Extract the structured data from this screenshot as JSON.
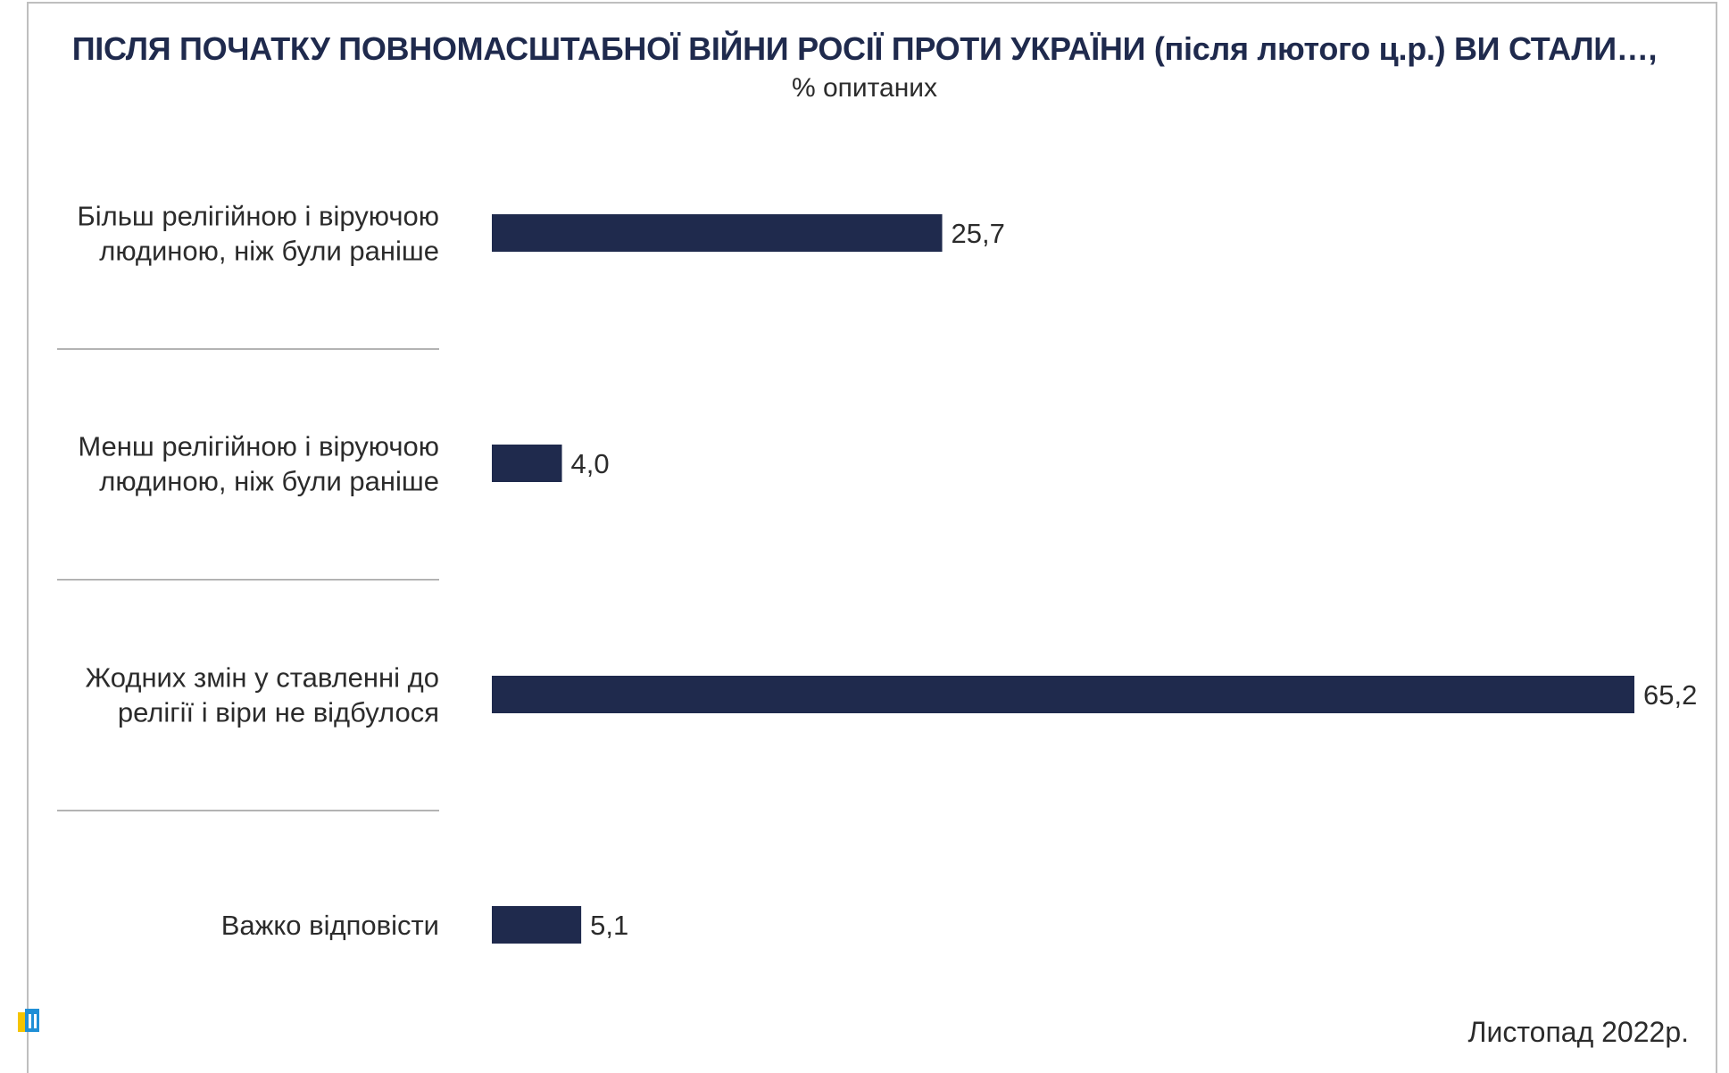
{
  "title": "ПІСЛЯ ПОЧАТКУ ПОВНОМАСШТАБНОЇ ВІЙНИ РОСІЇ ПРОТИ УКРАЇНИ (після лютого ц.р.) ВИ СТАЛИ…,",
  "subtitle": "% опитаних",
  "footer": "Листопад 2022р.",
  "colors": {
    "bar": "#1f2a4d",
    "separator": "#9a9a9a",
    "text": "#2b2b2b",
    "logo_blue": "#1f8fd6",
    "logo_yellow": "#f5c400"
  },
  "chart_data": {
    "type": "bar",
    "orientation": "horizontal",
    "categories": [
      [
        "Більш релігійною і віруючою",
        "людиною, ніж були раніше"
      ],
      [
        "Менш релігійною і віруючою",
        "людиною, ніж були раніше"
      ],
      [
        "Жодних змін у ставленні до",
        "релігії і віри не відбулося"
      ],
      [
        "Важко відповісти"
      ]
    ],
    "values": [
      25.7,
      4.0,
      65.2,
      5.1
    ],
    "value_labels": [
      "25,7",
      "4,0",
      "65,2",
      "5,1"
    ],
    "xlim": [
      0,
      65.2
    ],
    "grid": false,
    "legend": "none"
  }
}
